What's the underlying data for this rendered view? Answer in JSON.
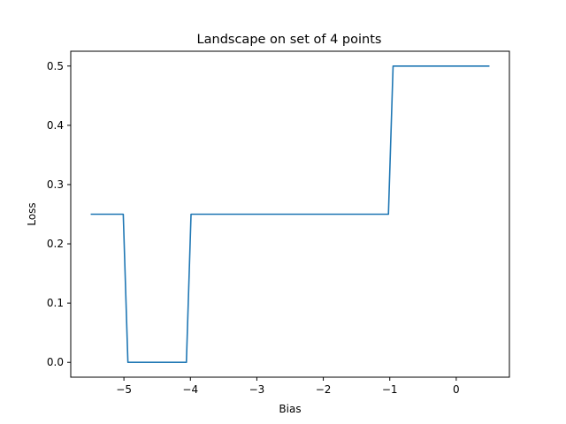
{
  "chart_data": {
    "type": "line",
    "title": "Landscape on set of 4 points",
    "xlabel": "Bias",
    "ylabel": "Loss",
    "xlim": [
      -5.8,
      0.8
    ],
    "ylim": [
      -0.025,
      0.525
    ],
    "xticks": [
      -5,
      -4,
      -3,
      -2,
      -1,
      0
    ],
    "xtick_labels": [
      "−5",
      "−4",
      "−3",
      "−2",
      "−1",
      "0"
    ],
    "yticks": [
      0.0,
      0.1,
      0.2,
      0.3,
      0.4,
      0.5
    ],
    "ytick_labels": [
      "0.0",
      "0.1",
      "0.2",
      "0.3",
      "0.4",
      "0.5"
    ],
    "grid": false,
    "series": [
      {
        "color": "#1f77b4",
        "x": [
          -5.5,
          -5.01,
          -4.94,
          -4.06,
          -3.99,
          -1.02,
          -0.95,
          0.5
        ],
        "y": [
          0.25,
          0.25,
          0.0,
          0.0,
          0.25,
          0.25,
          0.5,
          0.5
        ]
      }
    ]
  }
}
